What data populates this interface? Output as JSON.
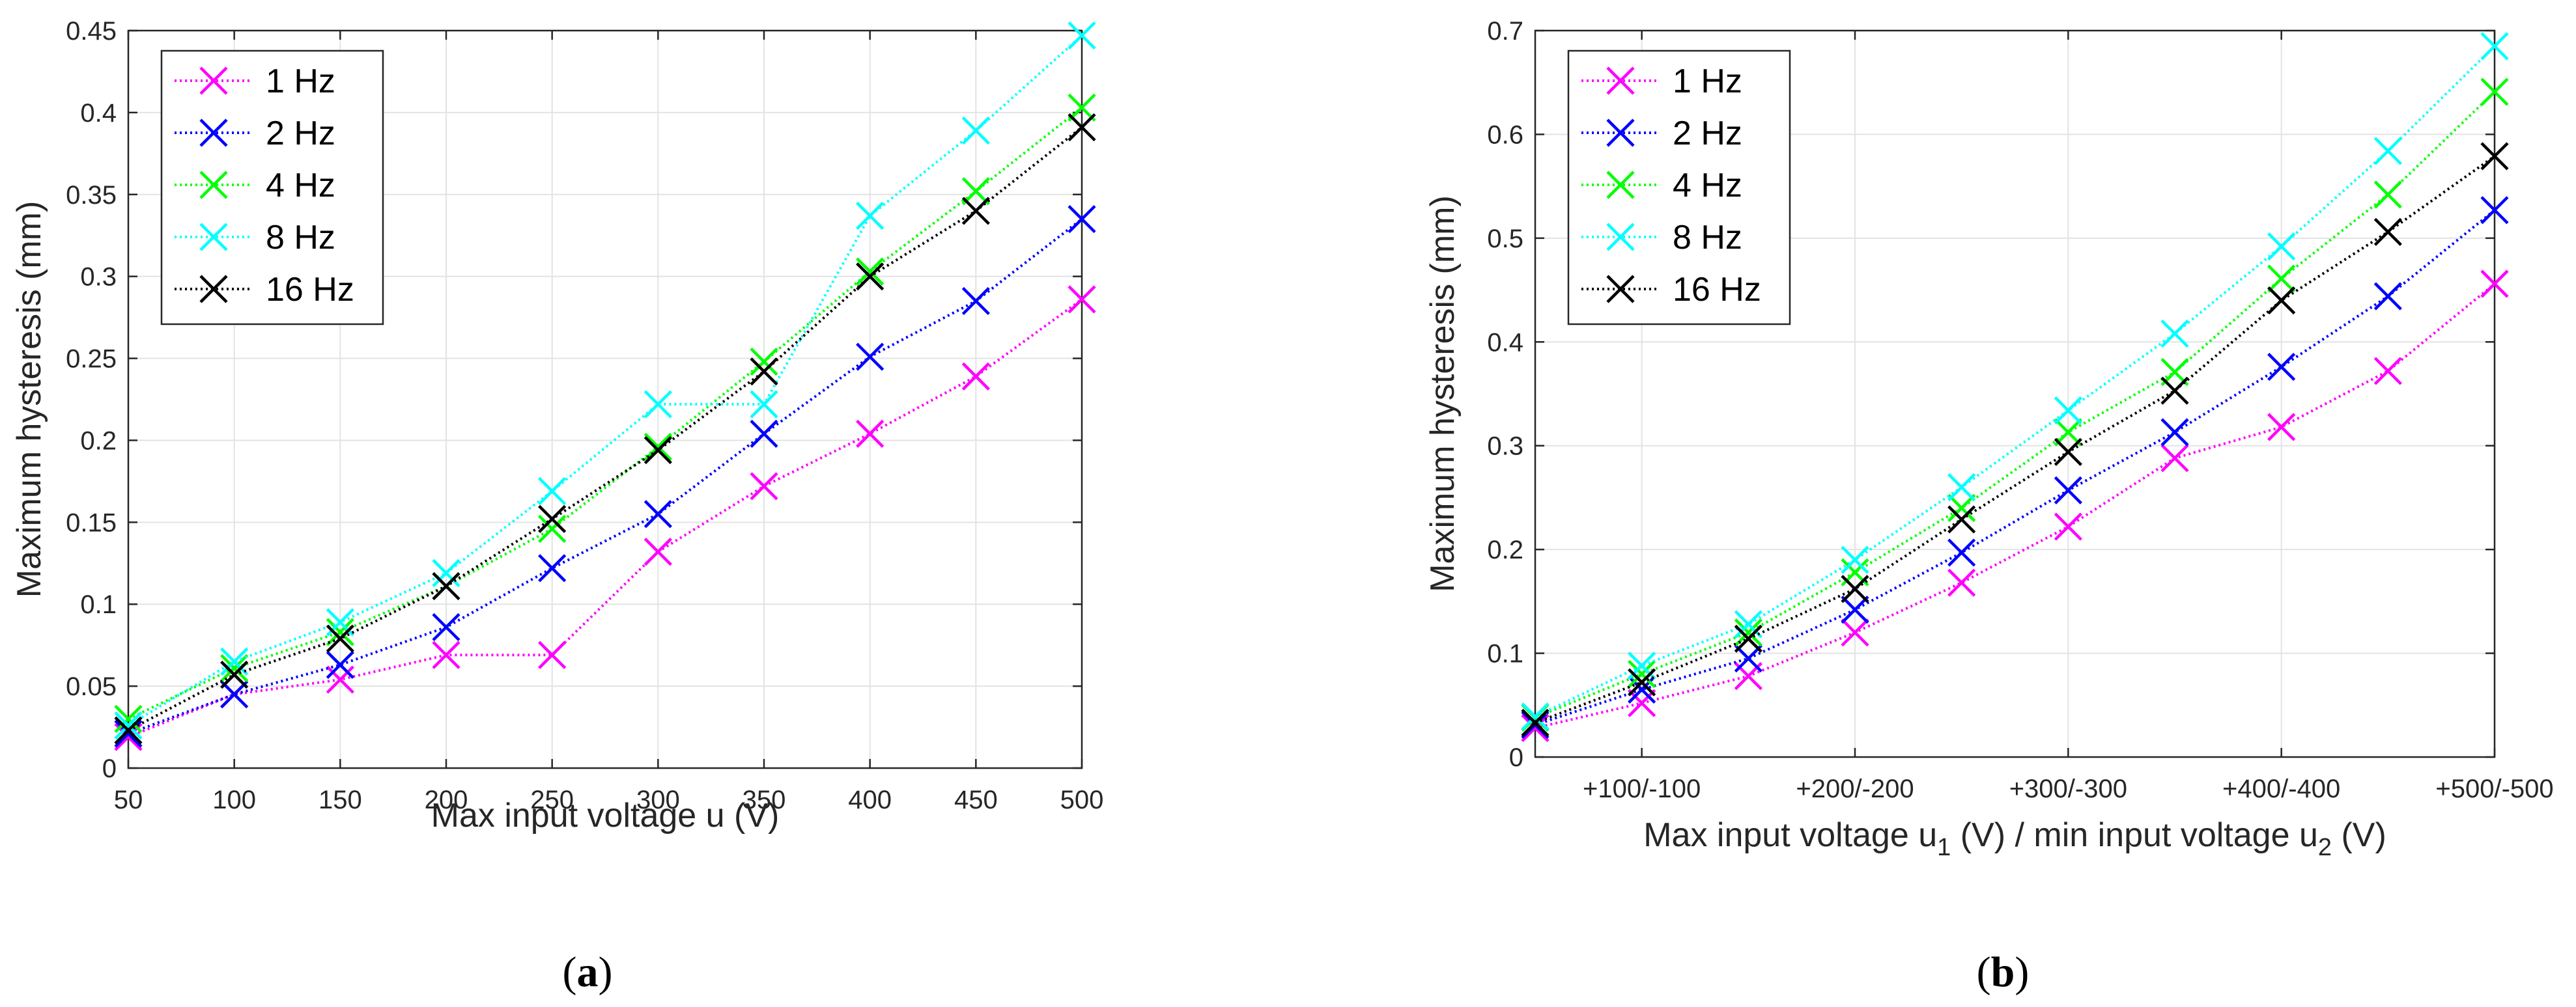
{
  "chart_data": [
    {
      "type": "line",
      "panel_label": "a",
      "xlabel": "Max input voltage u (V)",
      "ylabel": "Maximum hysteresis (mm)",
      "x": [
        50,
        100,
        150,
        200,
        250,
        300,
        350,
        400,
        450,
        500
      ],
      "x_tick_labels": [
        "50",
        "100",
        "150",
        "200",
        "250",
        "300",
        "350",
        "400",
        "450",
        "500"
      ],
      "xlim": [
        50,
        500
      ],
      "ylim": [
        0,
        0.45
      ],
      "y_ticks": [
        0,
        0.05,
        0.1,
        0.15,
        0.2,
        0.25,
        0.3,
        0.35,
        0.4,
        0.45
      ],
      "y_tick_labels": [
        "0",
        "0.05",
        "0.1",
        "0.15",
        "0.2",
        "0.25",
        "0.3",
        "0.35",
        "0.4",
        "0.45"
      ],
      "grid": true,
      "legend_position": "top-left",
      "series": [
        {
          "name": "1 Hz",
          "color": "#ff00ff",
          "values": [
            0.019,
            0.045,
            0.054,
            0.069,
            0.069,
            0.132,
            0.172,
            0.204,
            0.239,
            0.286
          ]
        },
        {
          "name": "2 Hz",
          "color": "#0000ff",
          "values": [
            0.021,
            0.045,
            0.063,
            0.086,
            0.122,
            0.155,
            0.204,
            0.251,
            0.285,
            0.335
          ]
        },
        {
          "name": "4 Hz",
          "color": "#00ff00",
          "values": [
            0.03,
            0.061,
            0.083,
            0.111,
            0.146,
            0.196,
            0.248,
            0.303,
            0.352,
            0.403
          ]
        },
        {
          "name": "8 Hz",
          "color": "#00ffff",
          "values": [
            0.026,
            0.065,
            0.089,
            0.119,
            0.169,
            0.222,
            0.222,
            0.337,
            0.389,
            0.447
          ]
        },
        {
          "name": "16 Hz",
          "color": "#000000",
          "values": [
            0.023,
            0.057,
            0.079,
            0.111,
            0.152,
            0.194,
            0.242,
            0.3,
            0.34,
            0.391
          ]
        }
      ]
    },
    {
      "type": "line",
      "panel_label": "b",
      "xlabel": "Max input voltage u1 (V) / min input voltage u2 (V)",
      "xlabel_parts": {
        "p1": "Max input voltage u",
        "s1": "1",
        "p2": " (V) / min input voltage u",
        "s2": "2",
        "p3": " (V)"
      },
      "ylabel": "Maximum hysteresis (mm)",
      "x": [
        50,
        100,
        150,
        200,
        250,
        300,
        350,
        400,
        450,
        500
      ],
      "x_ticks": [
        100,
        200,
        300,
        400,
        500
      ],
      "x_tick_labels": [
        "+100/-100",
        "+200/-200",
        "+300/-300",
        "+400/-400",
        "+500/-500"
      ],
      "xlim": [
        50,
        500
      ],
      "ylim": [
        0,
        0.7
      ],
      "y_ticks": [
        0,
        0.1,
        0.2,
        0.3,
        0.4,
        0.5,
        0.6,
        0.7
      ],
      "y_tick_labels": [
        "0",
        "0.1",
        "0.2",
        "0.3",
        "0.4",
        "0.5",
        "0.6",
        "0.7"
      ],
      "grid": true,
      "legend_position": "top-left",
      "series": [
        {
          "name": "1 Hz",
          "color": "#ff00ff",
          "values": [
            0.028,
            0.052,
            0.078,
            0.12,
            0.168,
            0.222,
            0.288,
            0.318,
            0.372,
            0.456
          ]
        },
        {
          "name": "2 Hz",
          "color": "#0000ff",
          "values": [
            0.031,
            0.065,
            0.095,
            0.142,
            0.197,
            0.257,
            0.313,
            0.376,
            0.444,
            0.527
          ]
        },
        {
          "name": "4 Hz",
          "color": "#00ff00",
          "values": [
            0.038,
            0.08,
            0.12,
            0.178,
            0.24,
            0.313,
            0.371,
            0.461,
            0.542,
            0.641
          ]
        },
        {
          "name": "8 Hz",
          "color": "#00ffff",
          "values": [
            0.039,
            0.088,
            0.128,
            0.19,
            0.26,
            0.334,
            0.408,
            0.492,
            0.584,
            0.685
          ]
        },
        {
          "name": "16 Hz",
          "color": "#000000",
          "values": [
            0.033,
            0.072,
            0.114,
            0.162,
            0.229,
            0.294,
            0.353,
            0.44,
            0.506,
            0.579
          ]
        }
      ]
    }
  ]
}
